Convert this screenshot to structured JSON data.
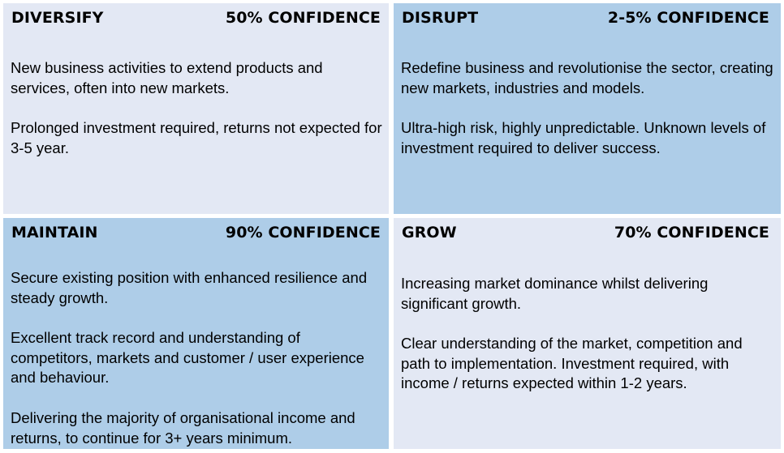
{
  "quadrants": {
    "diversify": {
      "title": "DIVERSIFY",
      "confidence": "50% CONFIDENCE",
      "paragraphs": [
        "New business activities to extend products and services, often into new markets.",
        "Prolonged investment required, returns not expected for 3-5 year."
      ]
    },
    "disrupt": {
      "title": "DISRUPT",
      "confidence": "2-5% CONFIDENCE",
      "paragraphs": [
        "Redefine business and revolutionise the sector, creating new markets, industries and models.",
        "Ultra-high risk, highly unpredictable. Unknown levels of investment required to deliver success."
      ]
    },
    "maintain": {
      "title": "MAINTAIN",
      "confidence": "90% CONFIDENCE",
      "paragraphs": [
        "Secure existing position with enhanced resilience and steady growth.",
        "Excellent track record and understanding of competitors, markets and customer / user experience and behaviour.",
        "Delivering the majority of organisational income and returns, to continue for 3+ years minimum."
      ]
    },
    "grow": {
      "title": "GROW",
      "confidence": "70% CONFIDENCE",
      "paragraphs": [
        "Increasing market dominance whilst delivering significant growth.",
        "Clear understanding of the market, competition and path to implementation. Investment required, with income / returns expected within 1-2 years."
      ]
    }
  },
  "colors": {
    "light_fill": "#e3e8f4",
    "dark_fill": "#aecde8"
  }
}
